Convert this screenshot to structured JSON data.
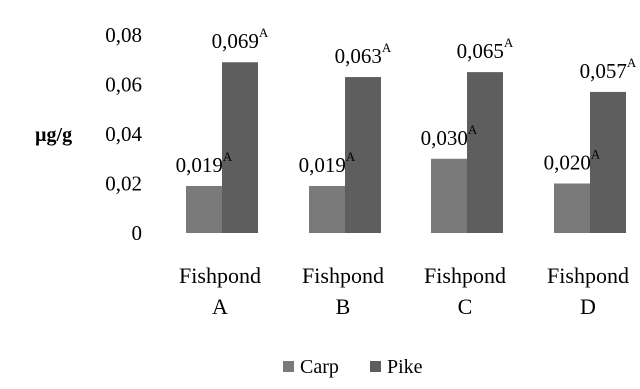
{
  "chart_data": {
    "type": "bar",
    "ylabel": "µg/g",
    "ylim": [
      0,
      0.08
    ],
    "yticks": [
      {
        "value": 0,
        "label": "0"
      },
      {
        "value": 0.02,
        "label": "0,02"
      },
      {
        "value": 0.04,
        "label": "0,04"
      },
      {
        "value": 0.06,
        "label": "0,06"
      },
      {
        "value": 0.08,
        "label": "0,08"
      }
    ],
    "categories": [
      {
        "line1": "Fishpond",
        "line2": "A"
      },
      {
        "line1": "Fishpond",
        "line2": "B"
      },
      {
        "line1": "Fishpond",
        "line2": "C"
      },
      {
        "line1": "Fishpond",
        "line2": "D"
      }
    ],
    "series": [
      {
        "name": "Carp",
        "color": "#7a7a7a",
        "values": [
          0.019,
          0.019,
          0.03,
          0.02
        ],
        "labels": [
          "0,019",
          "0,019",
          "0,030",
          "0,020"
        ],
        "superscripts": [
          "A",
          "A",
          "A",
          "A"
        ]
      },
      {
        "name": "Pike",
        "color": "#5e5e5e",
        "values": [
          0.069,
          0.063,
          0.065,
          0.057
        ],
        "labels": [
          "0,069",
          "0,063",
          "0,065",
          "0,057"
        ],
        "superscripts": [
          "A",
          "A",
          "A",
          "A"
        ]
      }
    ],
    "grid": false,
    "legend": "bottom"
  }
}
